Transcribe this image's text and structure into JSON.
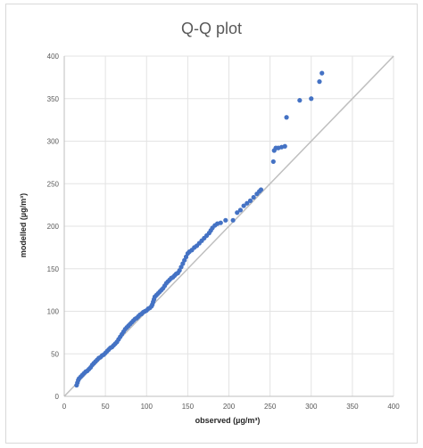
{
  "chart_data": {
    "type": "scatter",
    "title": "Q-Q plot",
    "xlabel": "observed (µg/m³)",
    "ylabel": "modelled (µg/m³)",
    "xlim": [
      0,
      400
    ],
    "ylim": [
      0,
      400
    ],
    "x_ticks": [
      "0",
      "50",
      "100",
      "150",
      "200",
      "250",
      "300",
      "350",
      "400"
    ],
    "y_ticks": [
      "0",
      "50",
      "100",
      "150",
      "200",
      "250",
      "300",
      "350",
      "400"
    ],
    "grid": true,
    "legend": "none",
    "reference_line": {
      "name": "",
      "from": [
        0,
        0
      ],
      "to": [
        400,
        400
      ],
      "color": "#bfbfbf"
    },
    "series": [
      {
        "color": "#4472c4",
        "points": [
          [
            15,
            13
          ],
          [
            16,
            16
          ],
          [
            17,
            19
          ],
          [
            18,
            21
          ],
          [
            20,
            23
          ],
          [
            22,
            25
          ],
          [
            24,
            27
          ],
          [
            26,
            29
          ],
          [
            28,
            30
          ],
          [
            30,
            32
          ],
          [
            32,
            34
          ],
          [
            34,
            37
          ],
          [
            36,
            39
          ],
          [
            38,
            41
          ],
          [
            40,
            43
          ],
          [
            42,
            45
          ],
          [
            44,
            46
          ],
          [
            46,
            48
          ],
          [
            48,
            49
          ],
          [
            50,
            51
          ],
          [
            52,
            53
          ],
          [
            54,
            55
          ],
          [
            56,
            57
          ],
          [
            58,
            58
          ],
          [
            60,
            60
          ],
          [
            62,
            62
          ],
          [
            64,
            64
          ],
          [
            66,
            67
          ],
          [
            68,
            70
          ],
          [
            70,
            73
          ],
          [
            72,
            76
          ],
          [
            74,
            79
          ],
          [
            76,
            81
          ],
          [
            78,
            83
          ],
          [
            80,
            85
          ],
          [
            82,
            87
          ],
          [
            84,
            89
          ],
          [
            86,
            91
          ],
          [
            88,
            92
          ],
          [
            90,
            94
          ],
          [
            92,
            96
          ],
          [
            94,
            97
          ],
          [
            96,
            99
          ],
          [
            98,
            100
          ],
          [
            100,
            101
          ],
          [
            102,
            103
          ],
          [
            104,
            104
          ],
          [
            106,
            106
          ],
          [
            107,
            108
          ],
          [
            108,
            111
          ],
          [
            109,
            114
          ],
          [
            110,
            117
          ],
          [
            112,
            119
          ],
          [
            114,
            121
          ],
          [
            116,
            123
          ],
          [
            118,
            125
          ],
          [
            120,
            127
          ],
          [
            122,
            130
          ],
          [
            124,
            133
          ],
          [
            126,
            135
          ],
          [
            128,
            137
          ],
          [
            130,
            139
          ],
          [
            132,
            140
          ],
          [
            134,
            142
          ],
          [
            136,
            144
          ],
          [
            138,
            145
          ],
          [
            140,
            148
          ],
          [
            142,
            152
          ],
          [
            144,
            156
          ],
          [
            146,
            160
          ],
          [
            148,
            164
          ],
          [
            150,
            168
          ],
          [
            152,
            170
          ],
          [
            155,
            172
          ],
          [
            158,
            175
          ],
          [
            161,
            177
          ],
          [
            164,
            180
          ],
          [
            167,
            183
          ],
          [
            170,
            186
          ],
          [
            173,
            189
          ],
          [
            176,
            192
          ],
          [
            178,
            195
          ],
          [
            180,
            198
          ],
          [
            183,
            201
          ],
          [
            186,
            203
          ],
          [
            190,
            204
          ],
          [
            196,
            207
          ],
          [
            205,
            207
          ],
          [
            210,
            216
          ],
          [
            214,
            219
          ],
          [
            218,
            224
          ],
          [
            222,
            227
          ],
          [
            226,
            230
          ],
          [
            230,
            234
          ],
          [
            234,
            238
          ],
          [
            237,
            241
          ],
          [
            239,
            243
          ],
          [
            254,
            276
          ],
          [
            255,
            289
          ],
          [
            257,
            292
          ],
          [
            260,
            292
          ],
          [
            264,
            293
          ],
          [
            268,
            294
          ],
          [
            270,
            328
          ],
          [
            286,
            348
          ],
          [
            300,
            350
          ],
          [
            310,
            370
          ],
          [
            313,
            380
          ]
        ]
      }
    ]
  }
}
